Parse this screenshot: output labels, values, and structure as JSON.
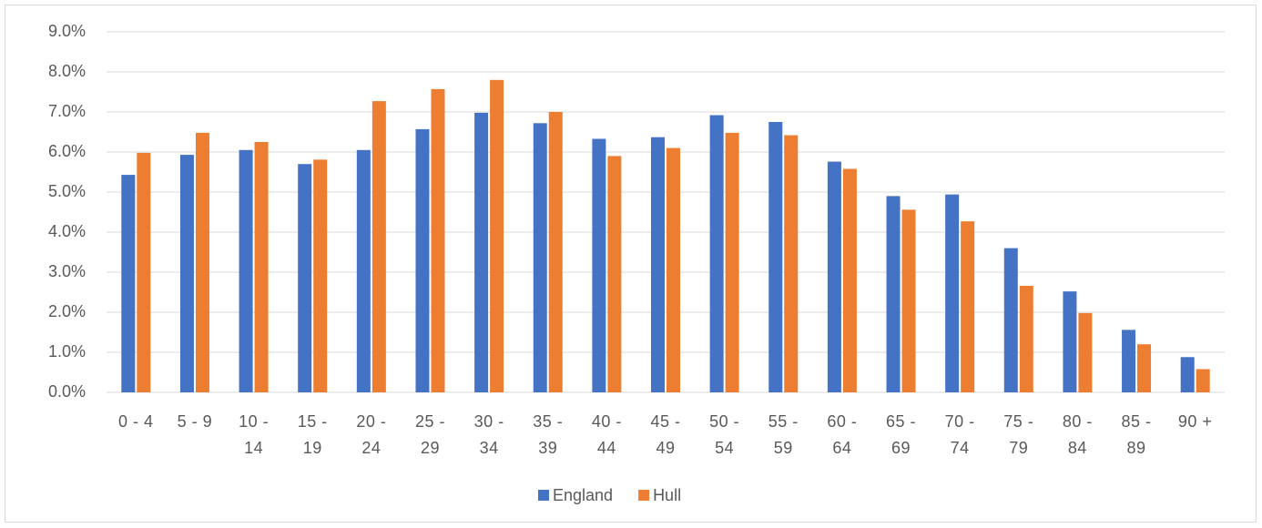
{
  "chart_data": {
    "type": "bar",
    "categories": [
      "0 - 4",
      "5 - 9",
      "10 - 14",
      "15 - 19",
      "20 - 24",
      "25 - 29",
      "30 - 34",
      "35 - 39",
      "40 - 44",
      "45 - 49",
      "50 - 54",
      "55 - 59",
      "60 - 64",
      "65 - 69",
      "70 - 74",
      "75 - 79",
      "80 - 84",
      "85 - 89",
      "90 +"
    ],
    "series": [
      {
        "name": "England",
        "color": "#4472c4",
        "values": [
          5.43,
          5.93,
          6.05,
          5.7,
          6.05,
          6.57,
          6.98,
          6.72,
          6.33,
          6.37,
          6.92,
          6.75,
          5.76,
          4.9,
          4.94,
          3.6,
          2.52,
          1.56,
          0.88
        ]
      },
      {
        "name": "Hull",
        "color": "#ed7d31",
        "values": [
          5.98,
          6.48,
          6.25,
          5.81,
          7.27,
          7.57,
          7.8,
          7.0,
          5.9,
          6.1,
          6.48,
          6.42,
          5.58,
          4.56,
          4.27,
          2.66,
          1.98,
          1.2,
          0.58
        ]
      }
    ],
    "ylim": [
      0,
      9
    ],
    "yticks": [
      {
        "value": 0,
        "label": "0.0%"
      },
      {
        "value": 1,
        "label": "1.0%"
      },
      {
        "value": 2,
        "label": "2.0%"
      },
      {
        "value": 3,
        "label": "3.0%"
      },
      {
        "value": 4,
        "label": "4.0%"
      },
      {
        "value": 5,
        "label": "5.0%"
      },
      {
        "value": 6,
        "label": "6.0%"
      },
      {
        "value": 7,
        "label": "7.0%"
      },
      {
        "value": 8,
        "label": "8.0%"
      },
      {
        "value": 9,
        "label": "9.0%"
      }
    ],
    "grid": true,
    "legend": "bottom"
  }
}
